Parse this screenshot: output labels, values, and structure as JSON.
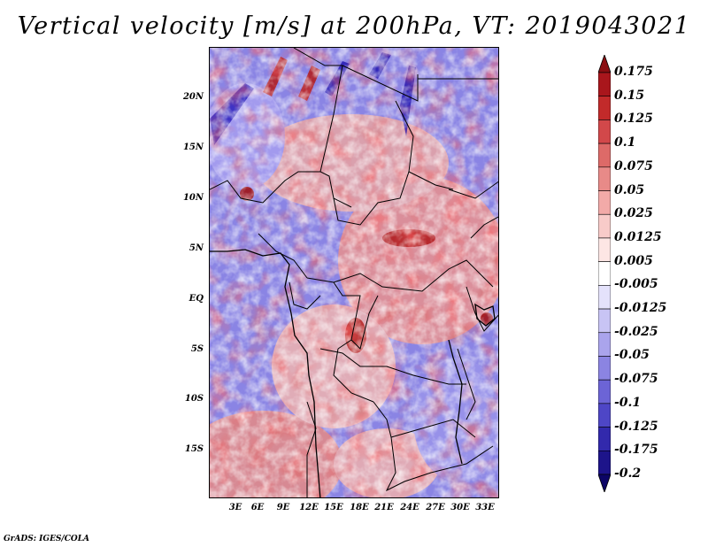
{
  "title": "Vertical velocity [m/s] at 200hPa, VT: 2019043021",
  "credit": "GrADS: IGES/COLA",
  "lat_labels": [
    "20N",
    "15N",
    "10N",
    "5N",
    "EQ",
    "5S",
    "10S",
    "15S"
  ],
  "lon_labels": [
    "3E",
    "6E",
    "9E",
    "12E",
    "15E",
    "18E",
    "21E",
    "24E",
    "27E",
    "30E",
    "33E"
  ],
  "colorbar": {
    "labels": [
      "0.175",
      "0.15",
      "0.125",
      "0.1",
      "0.075",
      "0.05",
      "0.025",
      "0.0125",
      "0.005",
      "-0.005",
      "-0.0125",
      "-0.025",
      "-0.05",
      "-0.075",
      "-0.1",
      "-0.125",
      "-0.175",
      "-0.2"
    ],
    "colors": [
      "#8b0e12",
      "#a9161c",
      "#c22a2a",
      "#d2484a",
      "#dd6a68",
      "#e88a88",
      "#f2aaa8",
      "#f8cbc9",
      "#fde6e4",
      "#ffffff",
      "#e4e2fb",
      "#c8c4f4",
      "#aaa4ec",
      "#8b84e2",
      "#6c64d6",
      "#4e46c6",
      "#3229ac",
      "#1d148a",
      "#0c0566"
    ]
  },
  "colors": {
    "positive": "#d8312f",
    "negative": "#3a2fcf",
    "neutral": "#ffffff"
  }
}
